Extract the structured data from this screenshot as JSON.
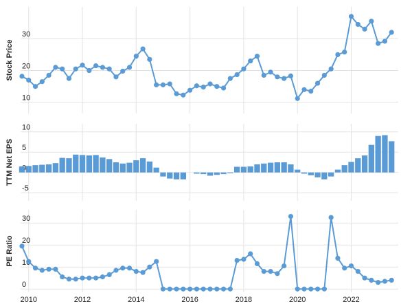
{
  "chart_data": [
    {
      "type": "line",
      "ylabel": "Stock Price",
      "color": "#5b9bd5",
      "x": [
        2009.75,
        2010,
        2010.25,
        2010.5,
        2010.75,
        2011,
        2011.25,
        2011.5,
        2011.75,
        2012,
        2012.25,
        2012.5,
        2012.75,
        2013,
        2013.25,
        2013.5,
        2013.75,
        2014,
        2014.25,
        2014.5,
        2014.75,
        2015,
        2015.25,
        2015.5,
        2015.75,
        2016,
        2016.25,
        2016.5,
        2016.75,
        2017,
        2017.25,
        2017.5,
        2017.75,
        2018,
        2018.25,
        2018.5,
        2018.75,
        2019,
        2019.25,
        2019.5,
        2019.75,
        2020,
        2020.25,
        2020.5,
        2020.75,
        2021,
        2021.25,
        2021.5,
        2021.75,
        2022,
        2022.25,
        2022.5,
        2022.75,
        2023,
        2023.25,
        2023.5
      ],
      "values": [
        18.2,
        17,
        15,
        16.5,
        18.5,
        21,
        20.5,
        17.5,
        20.5,
        21.7,
        20,
        21.5,
        21,
        20.5,
        18,
        19.8,
        21,
        24.5,
        26.8,
        23.5,
        15.5,
        15.5,
        15.8,
        12.7,
        12.3,
        13.8,
        15.2,
        14.8,
        15.8,
        15,
        14.5,
        17.5,
        18.7,
        20.5,
        23,
        24.5,
        18.5,
        19.5,
        18,
        17.5,
        18.3,
        11.2,
        14,
        13.5,
        16,
        18.5,
        20.5,
        25,
        25.8,
        37,
        34.5,
        33,
        35.5,
        28.5,
        29.2,
        32
      ],
      "xlim": [
        2009.7,
        2023.75
      ],
      "xticks": [
        2010,
        2012,
        2014,
        2016,
        2018,
        2020,
        2022
      ],
      "ylim": [
        6.5,
        40
      ],
      "yticks": [
        10,
        20,
        30
      ],
      "grid": true
    },
    {
      "type": "bar",
      "ylabel": "TTM Net EPS",
      "color": "#5b9bd5",
      "x": [
        2009.75,
        2010,
        2010.25,
        2010.5,
        2010.75,
        2011,
        2011.25,
        2011.5,
        2011.75,
        2012,
        2012.25,
        2012.5,
        2012.75,
        2013,
        2013.25,
        2013.5,
        2013.75,
        2014,
        2014.25,
        2014.5,
        2014.75,
        2015,
        2015.25,
        2015.5,
        2015.75,
        2016,
        2016.25,
        2016.5,
        2016.75,
        2017,
        2017.25,
        2017.5,
        2017.75,
        2018,
        2018.25,
        2018.5,
        2018.75,
        2019,
        2019.25,
        2019.5,
        2019.75,
        2020,
        2020.25,
        2020.5,
        2020.75,
        2021,
        2021.25,
        2021.5,
        2021.75,
        2022,
        2022.25,
        2022.5,
        2022.75,
        2023,
        2023.25,
        2023.5
      ],
      "values": [
        1.5,
        1.6,
        1.8,
        1.9,
        2.0,
        2.3,
        3.6,
        3.5,
        4.4,
        4.3,
        4.2,
        4.3,
        3.7,
        3.3,
        2.5,
        2.2,
        2.4,
        3.0,
        3.5,
        2.7,
        1.2,
        -1.0,
        -1.5,
        -1.7,
        -1.7,
        0,
        -0.3,
        -0.4,
        -0.8,
        -0.6,
        -0.4,
        -0.2,
        1.4,
        1.4,
        1.5,
        2.0,
        2.2,
        2.4,
        2.5,
        2.5,
        2.0,
        0.7,
        -0.3,
        -0.7,
        -1.2,
        -1.7,
        -1.0,
        0.7,
        1.8,
        2.6,
        3.5,
        4.2,
        6.8,
        9.0,
        9.2,
        7.7
      ],
      "xlim": [
        2009.7,
        2023.75
      ],
      "xticks": [
        2010,
        2012,
        2014,
        2016,
        2018,
        2020,
        2022
      ],
      "ylim": [
        -7,
        12
      ],
      "yticks": [
        -5,
        0,
        5,
        10
      ],
      "grid": true
    },
    {
      "type": "line",
      "ylabel": "PE Ratio",
      "color": "#5b9bd5",
      "x": [
        2009.75,
        2010,
        2010.25,
        2010.5,
        2010.75,
        2011,
        2011.25,
        2011.5,
        2011.75,
        2012,
        2012.25,
        2012.5,
        2012.75,
        2013,
        2013.25,
        2013.5,
        2013.75,
        2014,
        2014.25,
        2014.5,
        2014.75,
        2015,
        2015.25,
        2015.5,
        2015.75,
        2016,
        2016.25,
        2016.5,
        2016.75,
        2017,
        2017.25,
        2017.5,
        2017.75,
        2018,
        2018.25,
        2018.5,
        2018.75,
        2019,
        2019.25,
        2019.5,
        2019.75,
        2020,
        2020.25,
        2020.5,
        2020.75,
        2021,
        2021.25,
        2021.5,
        2021.75,
        2022,
        2022.25,
        2022.5,
        2022.75,
        2023,
        2023.25,
        2023.5
      ],
      "values": [
        19.5,
        12.5,
        9.5,
        8.5,
        9,
        9,
        5.5,
        4.5,
        4.5,
        5,
        5,
        5,
        5.5,
        6.5,
        8.5,
        9.5,
        9.5,
        8,
        7.5,
        10,
        12.5,
        0,
        0,
        0,
        0,
        0,
        0,
        0,
        0,
        0,
        0,
        0,
        13,
        13.5,
        16,
        11.5,
        8,
        8,
        7,
        10.5,
        33,
        0,
        0,
        0,
        0,
        0,
        32.5,
        14,
        9.5,
        10.5,
        8,
        5,
        4,
        3,
        3.5,
        4
      ],
      "xlim": [
        2009.7,
        2023.75
      ],
      "xticks": [
        2010,
        2012,
        2014,
        2016,
        2018,
        2020,
        2022
      ],
      "ylim": [
        -1.5,
        36
      ],
      "yticks": [
        0,
        10,
        20,
        30
      ],
      "grid": true
    }
  ]
}
